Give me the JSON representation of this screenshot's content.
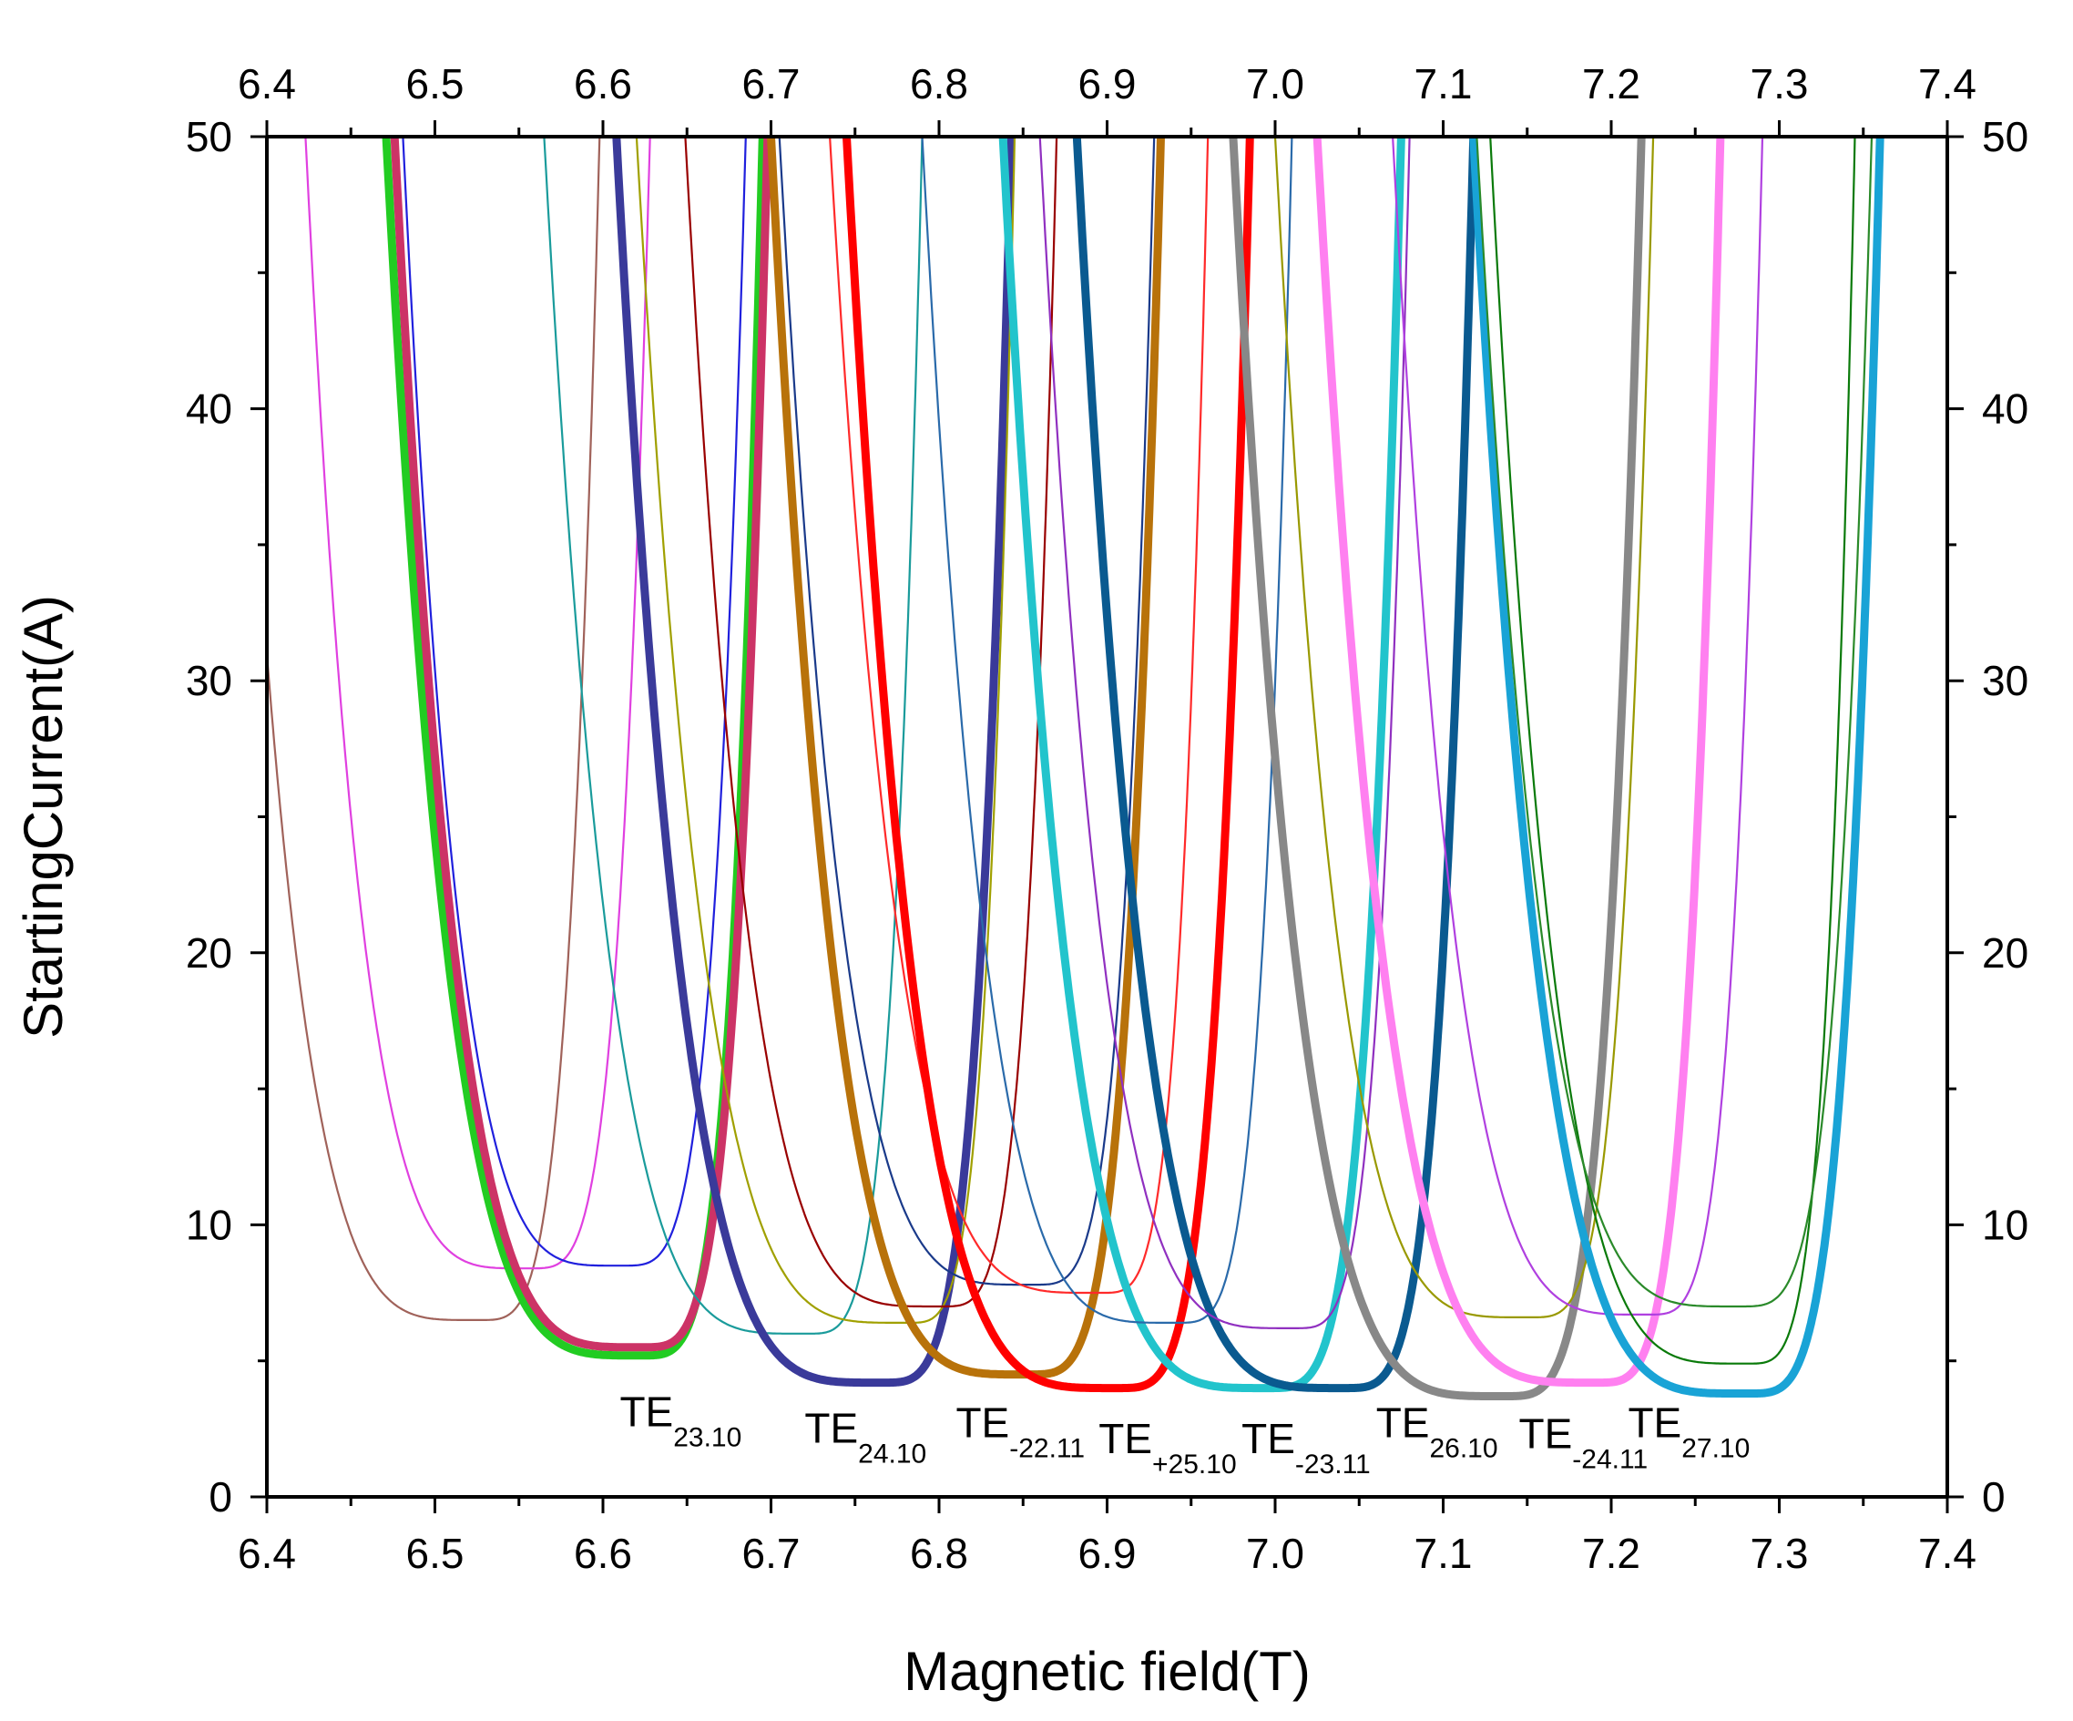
{
  "chart_data": {
    "type": "line",
    "title": "",
    "xlabel": "Magnetic field(T)",
    "ylabel": "StartingCurrent(A)",
    "xlim": [
      6.4,
      7.4
    ],
    "ylim": [
      0,
      50
    ],
    "x_ticks": [
      "6.4",
      "6.5",
      "6.6",
      "6.7",
      "6.8",
      "6.9",
      "7.0",
      "7.1",
      "7.2",
      "7.3",
      "7.4"
    ],
    "y_ticks": [
      "0",
      "10",
      "20",
      "30",
      "40",
      "50"
    ],
    "top_axis_ticks": [
      "6.4",
      "6.5",
      "6.6",
      "6.7",
      "6.8",
      "6.9",
      "7.0",
      "7.1",
      "7.2",
      "7.3",
      "7.4"
    ],
    "right_axis_ticks": [
      "0",
      "10",
      "20",
      "30",
      "40",
      "50"
    ],
    "grid": false,
    "legend": "none",
    "series": [
      {
        "name": "brown-thin",
        "color": "#a0625a",
        "thick": false,
        "left_x": 6.4,
        "left_y": 31,
        "min_x": 6.525,
        "min_y": 6.5,
        "right_x": 6.598
      },
      {
        "name": "magenta-thin",
        "color": "#e040e0",
        "thick": false,
        "left_x": 6.423,
        "min_x": 6.555,
        "min_y": 8.4,
        "right_x": 6.628
      },
      {
        "name": "green-thick",
        "color": "#22cc22",
        "thick": true,
        "left_x": 6.471,
        "min_x": 6.622,
        "min_y": 5.2,
        "right_x": 6.695
      },
      {
        "name": "crimson-thick",
        "color": "#cc3366",
        "thick": true,
        "left_x": 6.476,
        "min_x": 6.622,
        "min_y": 5.5,
        "right_x": 6.698
      },
      {
        "name": "blue-thin",
        "color": "#2020dd",
        "thick": false,
        "left_x": 6.481,
        "min_x": 6.61,
        "min_y": 8.5,
        "right_x": 6.685
      },
      {
        "name": "teal-thin",
        "color": "#1a9b9b",
        "thick": false,
        "left_x": 6.565,
        "min_x": 6.72,
        "min_y": 6,
        "right_x": 6.79
      },
      {
        "name": "indigo-thick",
        "color": "#3a3a9a",
        "thick": true,
        "left_x": 6.608,
        "min_x": 6.765,
        "min_y": 4.2,
        "right_x": 6.843
      },
      {
        "name": "olive-thin",
        "color": "#a0a000",
        "thick": false,
        "left_x": 6.62,
        "min_x": 6.78,
        "min_y": 6.4,
        "right_x": 6.845
      },
      {
        "name": "maroon-thin",
        "color": "#990000",
        "thick": false,
        "left_x": 6.649,
        "min_x": 6.8,
        "min_y": 7,
        "right_x": 6.87
      },
      {
        "name": "orange-thick",
        "color": "#b8720a",
        "thick": true,
        "left_x": 6.7,
        "min_x": 6.852,
        "min_y": 4.5,
        "right_x": 6.932
      },
      {
        "name": "navy-thin",
        "color": "#1a3a8a",
        "thick": false,
        "left_x": 6.705,
        "min_x": 6.855,
        "min_y": 7.8,
        "right_x": 6.928
      },
      {
        "name": "red-thin",
        "color": "#ff2a2a",
        "thick": false,
        "left_x": 6.735,
        "min_x": 6.895,
        "min_y": 7.5,
        "right_x": 6.96
      },
      {
        "name": "red-thick",
        "color": "#ff0000",
        "thick": true,
        "left_x": 6.745,
        "min_x": 6.905,
        "min_y": 4,
        "right_x": 6.985
      },
      {
        "name": "cyan-thick",
        "color": "#22c4cc",
        "thick": true,
        "left_x": 6.838,
        "min_x": 6.995,
        "min_y": 4,
        "right_x": 7.075
      },
      {
        "name": "steelblue-thin",
        "color": "#2a6aaa",
        "thick": false,
        "left_x": 6.79,
        "min_x": 6.94,
        "min_y": 6.4,
        "right_x": 7.01
      },
      {
        "name": "darkblue-thick",
        "color": "#0a5a90",
        "thick": true,
        "left_x": 6.882,
        "min_x": 7.04,
        "min_y": 4,
        "right_x": 7.118
      },
      {
        "name": "purple-thin",
        "color": "#9030c0",
        "thick": false,
        "left_x": 6.86,
        "min_x": 7.01,
        "min_y": 6.2,
        "right_x": 7.08
      },
      {
        "name": "gray-thick",
        "color": "#888888",
        "thick": true,
        "left_x": 6.975,
        "min_x": 7.135,
        "min_y": 3.7,
        "right_x": 7.218
      },
      {
        "name": "gold-thin",
        "color": "#999900",
        "thick": false,
        "left_x": 7.0,
        "min_x": 7.15,
        "min_y": 6.6,
        "right_x": 7.225
      },
      {
        "name": "violet-thick",
        "color": "#ff80f0",
        "thick": true,
        "left_x": 7.025,
        "min_x": 7.19,
        "min_y": 4.2,
        "right_x": 7.265
      },
      {
        "name": "lilac-thin",
        "color": "#b040e0",
        "thick": false,
        "left_x": 7.07,
        "min_x": 7.22,
        "min_y": 6.7,
        "right_x": 7.29
      },
      {
        "name": "skyblue-thick",
        "color": "#19a3d6",
        "thick": true,
        "left_x": 7.118,
        "min_x": 7.28,
        "min_y": 3.8,
        "right_x": 7.36
      },
      {
        "name": "forest-thin",
        "color": "#0a7a0a",
        "thick": false,
        "left_x": 7.128,
        "min_x": 7.28,
        "min_y": 4.9,
        "right_x": 7.345
      },
      {
        "name": "darkgreen-thin",
        "color": "#2a8a2a",
        "thick": false,
        "left_x": 7.12,
        "min_x": 7.275,
        "min_y": 7,
        "right_x": 7.355
      }
    ],
    "annotations": [
      {
        "base": "TE",
        "sub": "23.10",
        "x": 6.61,
        "y": 2.6
      },
      {
        "base": "TE",
        "sub": "24.10",
        "x": 6.72,
        "y": 2.0
      },
      {
        "base": "TE",
        "sub": "-22.11",
        "x": 6.81,
        "y": 2.2
      },
      {
        "base": "TE",
        "sub": "+25.10",
        "x": 6.895,
        "y": 1.6
      },
      {
        "base": "TE",
        "sub": "-23.11",
        "x": 6.98,
        "y": 1.6
      },
      {
        "base": "TE",
        "sub": "26.10",
        "x": 7.06,
        "y": 2.2
      },
      {
        "base": "TE",
        "sub": "-24.11",
        "x": 7.145,
        "y": 1.8
      },
      {
        "base": "TE",
        "sub": "27.10",
        "x": 7.21,
        "y": 2.2
      }
    ]
  }
}
